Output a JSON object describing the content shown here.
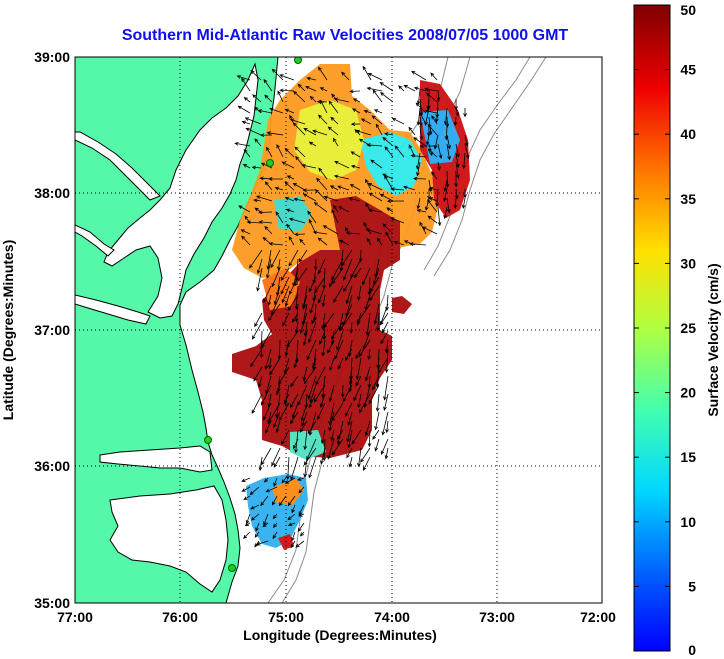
{
  "title": "Southern Mid-Atlantic Raw Velocities 2008/07/05 1000 GMT",
  "xlabel": "Longitude (Degrees:Minutes)",
  "ylabel": "Latitude (Degrees:Minutes)",
  "x_ticks": [
    "77:00",
    "76:00",
    "75:00",
    "74:00",
    "73:00",
    "72:00"
  ],
  "y_ticks": [
    "39:00",
    "38:00",
    "37:00",
    "36:00",
    "35:00"
  ],
  "colorbar": {
    "label": "Surface Velocity (cm/s)",
    "ticks": [
      "0",
      "5",
      "10",
      "15",
      "20",
      "25",
      "30",
      "35",
      "40",
      "45",
      "50"
    ],
    "range": [
      0,
      50
    ],
    "colormap": "jet"
  },
  "colors": {
    "land": "#55f7a8",
    "coast": "#000000",
    "bathymetry": "#8c8c8c",
    "title": "#1010ee",
    "station": "#22cc22"
  },
  "map": {
    "lon_range": [
      -77,
      -72
    ],
    "lat_range": [
      35,
      39
    ],
    "grid": "dotted"
  }
}
